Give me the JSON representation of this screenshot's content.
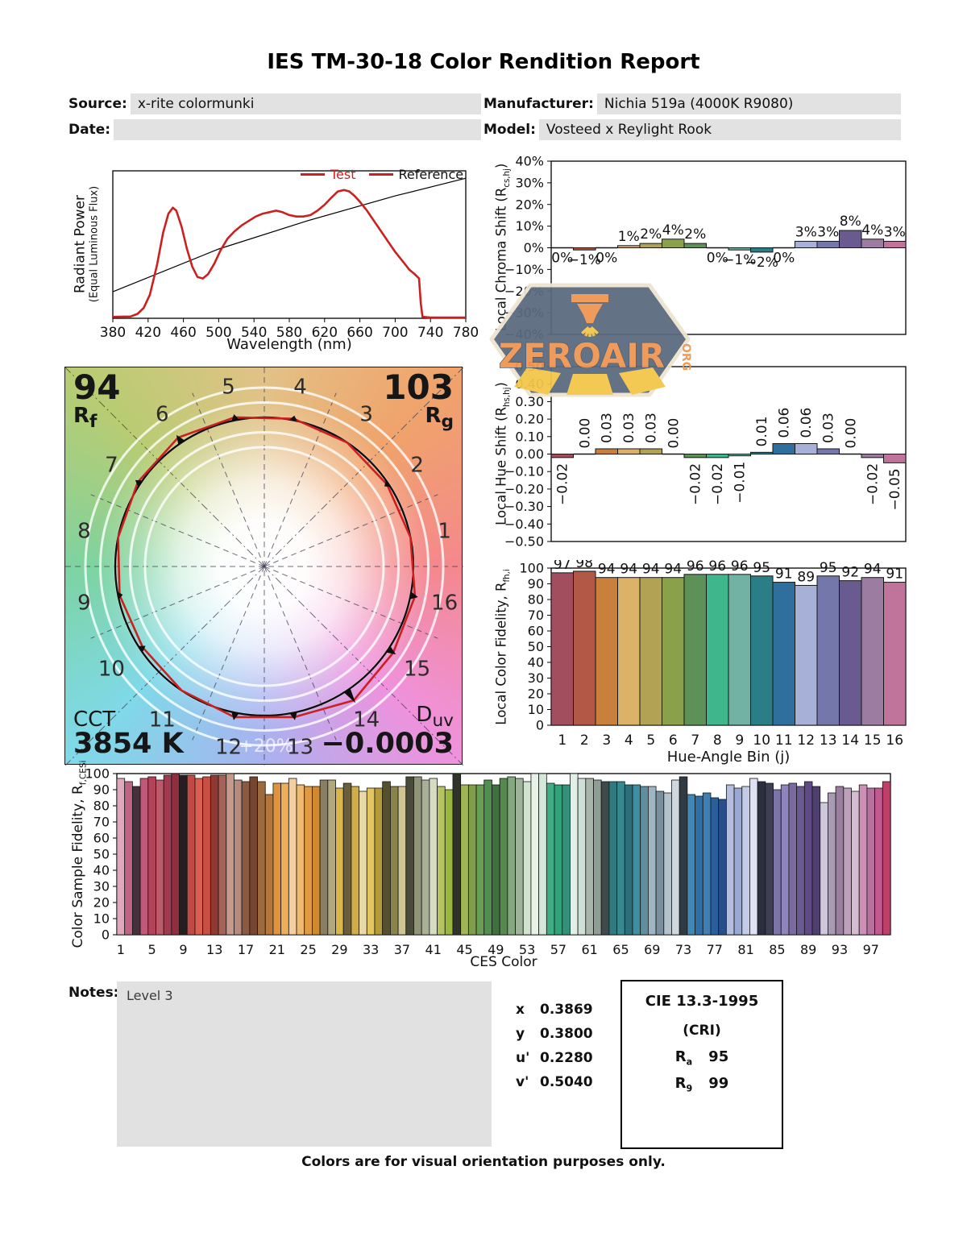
{
  "header": {
    "title": "IES TM-30-18 Color Rendition Report",
    "source_label": "Source:",
    "source_value": "x-rite colormunki",
    "manufacturer_label": "Manufacturer:",
    "manufacturer_value": "Nichia 519a (4000K R9080)",
    "date_label": "Date:",
    "date_value": "",
    "model_label": "Model:",
    "model_value": "Vosteed x Reylight Rook"
  },
  "watermark": {
    "text": "ZEROAIR",
    "suffix": "ORG",
    "badge_color": "#5a6a7e",
    "accent_color": "#ef9551",
    "beam_color": "#f3c64a",
    "border_color": "#ece4d0"
  },
  "bin_colors": [
    "#a34e5e",
    "#b25847",
    "#c9803c",
    "#dcb268",
    "#b2a354",
    "#8ba04b",
    "#5c9257",
    "#3fb68b",
    "#71b2a4",
    "#2c7e86",
    "#2f6f9e",
    "#a7b1d8",
    "#7477a9",
    "#695a90",
    "#9c7da1",
    "#c0749c"
  ],
  "chart_data": [
    {
      "id": "spd",
      "type": "line",
      "xlabel": "Wavelength (nm)",
      "ylabel_line1": "Radiant Power",
      "ylabel_line2": "(Equal Luminous Flux)",
      "xlim": [
        380,
        780
      ],
      "xticks": [
        380,
        420,
        460,
        500,
        540,
        580,
        620,
        660,
        700,
        740,
        780
      ],
      "legend": [
        {
          "label": "Test",
          "swatch_color": "#cc2020",
          "text_color": "#cc2020"
        },
        {
          "label": "Reference",
          "swatch_color": "#cc2020",
          "text_color": "#111111"
        }
      ],
      "series": [
        {
          "name": "Test",
          "color": "#cc2020",
          "points": [
            [
              380,
              0.01
            ],
            [
              400,
              0.012
            ],
            [
              408,
              0.03
            ],
            [
              415,
              0.07
            ],
            [
              422,
              0.16
            ],
            [
              430,
              0.36
            ],
            [
              437,
              0.58
            ],
            [
              443,
              0.71
            ],
            [
              448,
              0.75
            ],
            [
              452,
              0.73
            ],
            [
              458,
              0.62
            ],
            [
              464,
              0.47
            ],
            [
              470,
              0.35
            ],
            [
              476,
              0.28
            ],
            [
              482,
              0.27
            ],
            [
              488,
              0.3
            ],
            [
              495,
              0.37
            ],
            [
              502,
              0.46
            ],
            [
              510,
              0.54
            ],
            [
              518,
              0.59
            ],
            [
              526,
              0.63
            ],
            [
              534,
              0.66
            ],
            [
              542,
              0.69
            ],
            [
              550,
              0.71
            ],
            [
              558,
              0.72
            ],
            [
              565,
              0.73
            ],
            [
              572,
              0.72
            ],
            [
              580,
              0.7
            ],
            [
              588,
              0.69
            ],
            [
              596,
              0.69
            ],
            [
              604,
              0.7
            ],
            [
              612,
              0.73
            ],
            [
              620,
              0.77
            ],
            [
              628,
              0.82
            ],
            [
              635,
              0.86
            ],
            [
              642,
              0.87
            ],
            [
              648,
              0.86
            ],
            [
              654,
              0.83
            ],
            [
              660,
              0.79
            ],
            [
              668,
              0.73
            ],
            [
              676,
              0.66
            ],
            [
              684,
              0.59
            ],
            [
              692,
              0.52
            ],
            [
              700,
              0.45
            ],
            [
              708,
              0.39
            ],
            [
              716,
              0.33
            ],
            [
              722,
              0.3
            ],
            [
              727,
              0.27
            ],
            [
              729,
              0.1
            ],
            [
              731,
              0.01
            ],
            [
              740,
              0.005
            ],
            [
              780,
              0.005
            ]
          ]
        },
        {
          "name": "Reference",
          "color": "#000000",
          "points": [
            [
              380,
              0.18
            ],
            [
              500,
              0.47
            ],
            [
              600,
              0.66
            ],
            [
              700,
              0.83
            ],
            [
              780,
              0.95
            ]
          ]
        }
      ]
    },
    {
      "id": "cvg",
      "type": "polar",
      "rf_value": "94",
      "rf_sym": "R",
      "rf_sub": "f",
      "rg_value": "103",
      "rg_sym": "R",
      "rg_sub": "g",
      "cct_label": "CCT",
      "cct_value": "3854 K",
      "duv_sym": "D",
      "duv_sub": "uv",
      "duv_value": "−0.0003",
      "ring_label": "+20%",
      "bin_labels": [
        "1",
        "2",
        "3",
        "4",
        "5",
        "6",
        "7",
        "8",
        "9",
        "10",
        "11",
        "12",
        "13",
        "14",
        "15",
        "16"
      ],
      "chroma_shift_pct": [
        0,
        -1,
        0,
        1,
        2,
        4,
        2,
        0,
        -1,
        -2,
        0,
        3,
        3,
        8,
        4,
        3
      ],
      "test_color": "#cc2020",
      "reference_color": "#0d0d0d"
    },
    {
      "id": "chroma",
      "type": "bar",
      "ylabel_pre": "Local Chroma Shift (R",
      "ylabel_sub": "cs,hj",
      "ylabel_post": ")",
      "ylim": [
        -40,
        40
      ],
      "yticks": [
        "40%",
        "30%",
        "20%",
        "10%",
        "0%",
        "−10%",
        "−20%",
        "−30%",
        "−40%"
      ],
      "values": [
        0,
        -1,
        0,
        1,
        2,
        4,
        2,
        0,
        -1,
        -2,
        0,
        3,
        3,
        8,
        4,
        3
      ],
      "labels": [
        "0%",
        "−1%",
        "0%",
        "1%",
        "2%",
        "4%",
        "2%",
        "0%",
        "−1%",
        "−2%",
        "0%",
        "3%",
        "3%",
        "8%",
        "4%",
        "3%"
      ],
      "colors": [
        "#a34e5e",
        "#b25847",
        "#c9803c",
        "#dcb268",
        "#b2a354",
        "#8ba04b",
        "#5c9257",
        "#3fb68b",
        "#71b2a4",
        "#2c7e86",
        "#2f6f9e",
        "#a7b1d8",
        "#7477a9",
        "#695a90",
        "#9c7da1",
        "#c0749c"
      ]
    },
    {
      "id": "hue",
      "type": "bar",
      "ylabel_pre": "Local Hue Shift (R",
      "ylabel_sub": "hs,hj",
      "ylabel_post": ")",
      "ylim": [
        -0.5,
        0.5
      ],
      "yticks": [
        "0.50",
        "0.40",
        "0.30",
        "0.20",
        "0.10",
        "0.00",
        "−0.10",
        "−0.20",
        "−0.30",
        "−0.40",
        "−0.50"
      ],
      "values": [
        -0.02,
        0,
        0.03,
        0.03,
        0.03,
        0,
        -0.02,
        -0.02,
        -0.01,
        0.01,
        0.06,
        0.06,
        0.03,
        0,
        -0.02,
        -0.05
      ],
      "labels": [
        "−0.02",
        "0.00",
        "0.03",
        "0.03",
        "0.03",
        "0.00",
        "−0.02",
        "−0.02",
        "−0.01",
        "0.01",
        "0.06",
        "0.06",
        "0.03",
        "0.00",
        "−0.02",
        "−0.05"
      ],
      "colors": [
        "#a34e5e",
        "#b25847",
        "#c9803c",
        "#dcb268",
        "#b2a354",
        "#8ba04b",
        "#5c9257",
        "#3fb68b",
        "#71b2a4",
        "#2c7e86",
        "#2f6f9e",
        "#a7b1d8",
        "#7477a9",
        "#695a90",
        "#9c7da1",
        "#c0749c"
      ]
    },
    {
      "id": "fid16",
      "type": "bar",
      "ylabel_pre": "Local Color Fidelity, R",
      "ylabel_sub": "fh,i",
      "ylabel_post": "",
      "xlabel": "Hue-Angle Bin (j)",
      "ylim": [
        0,
        100
      ],
      "yticks": [
        "100",
        "90",
        "80",
        "70",
        "60",
        "50",
        "40",
        "30",
        "20",
        "10",
        "0"
      ],
      "xticks": [
        "1",
        "2",
        "3",
        "4",
        "5",
        "6",
        "7",
        "8",
        "9",
        "10",
        "11",
        "12",
        "13",
        "14",
        "15",
        "16"
      ],
      "values": [
        97,
        98,
        94,
        94,
        94,
        94,
        96,
        96,
        96,
        95,
        91,
        89,
        95,
        92,
        94,
        91
      ],
      "labels": [
        "97",
        "98",
        "94",
        "94",
        "94",
        "94",
        "96",
        "96",
        "96",
        "95",
        "91",
        "89",
        "95",
        "92",
        "94",
        "91"
      ],
      "colors": [
        "#a34e5e",
        "#b25847",
        "#c9803c",
        "#dcb268",
        "#b2a354",
        "#8ba04b",
        "#5c9257",
        "#3fb68b",
        "#71b2a4",
        "#2c7e86",
        "#2f6f9e",
        "#a7b1d8",
        "#7477a9",
        "#695a90",
        "#9c7da1",
        "#c0749c"
      ]
    },
    {
      "id": "ces",
      "type": "bar",
      "ylabel_pre": "Color Sample Fidelity, R",
      "ylabel_sub": "f,CESi",
      "ylabel_post": "",
      "xlabel": "CES Color",
      "ylim": [
        0,
        100
      ],
      "yticks": [
        "100",
        "90",
        "80",
        "70",
        "60",
        "50",
        "40",
        "30",
        "20",
        "10",
        "0"
      ],
      "xticks": [
        1,
        5,
        9,
        13,
        17,
        21,
        25,
        29,
        33,
        37,
        41,
        45,
        49,
        53,
        57,
        61,
        65,
        69,
        73,
        77,
        81,
        85,
        89,
        93,
        97
      ],
      "values": [
        97,
        95,
        92,
        97,
        98,
        96,
        99,
        100,
        99,
        99,
        97,
        98,
        99,
        99,
        100,
        96,
        95,
        98,
        95,
        87,
        94,
        94,
        97,
        93,
        92,
        92,
        96,
        96,
        91,
        94,
        92,
        89,
        91,
        91,
        95,
        92,
        92,
        98,
        98,
        96,
        97,
        92,
        90,
        100,
        93,
        93,
        93,
        96,
        93,
        97,
        98,
        97,
        95,
        100,
        100,
        94,
        93,
        93,
        100,
        97,
        97,
        96,
        95,
        95,
        95,
        93,
        93,
        92,
        92,
        89,
        88,
        96,
        98,
        87,
        86,
        88,
        85,
        84,
        93,
        91,
        92,
        97,
        95,
        94,
        90,
        93,
        94,
        92,
        95,
        92,
        82,
        88,
        92,
        91,
        89,
        93,
        91,
        91,
        95
      ],
      "colors": [
        "#dfa8bd",
        "#c06483",
        "#45303b",
        "#c25878",
        "#b2445a",
        "#bd5a69",
        "#a03a4e",
        "#8f2e3f",
        "#241d21",
        "#c24a44",
        "#d95f50",
        "#c94f43",
        "#8e3a32",
        "#a66258",
        "#c59a8d",
        "#b78a80",
        "#8a5a44",
        "#75452f",
        "#9c6a3f",
        "#b5763a",
        "#e0923f",
        "#edae59",
        "#f3cfa2",
        "#efb96e",
        "#e09a41",
        "#cf8a30",
        "#8a7f62",
        "#b3a87c",
        "#d9b54a",
        "#6b5e3c",
        "#cfae4a",
        "#e8d9a8",
        "#e3c75e",
        "#b59b3a",
        "#55512f",
        "#8a844c",
        "#cfc492",
        "#4a4a3a",
        "#8f9478",
        "#a8b096",
        "#d5dcc2",
        "#b5c45e",
        "#9ab83f",
        "#2f332a",
        "#a0b556",
        "#7f9e4a",
        "#6a9e55",
        "#4f8f4f",
        "#3f7040",
        "#57884f",
        "#85a881",
        "#9fb39b",
        "#cfe3cf",
        "#e8f2e6",
        "#d5e8d8",
        "#3fae84",
        "#2fa37a",
        "#35907a",
        "#e2efe7",
        "#cfe0d6",
        "#a8b5a8",
        "#8f9e94",
        "#3f4a4a",
        "#2f7a7f",
        "#35898f",
        "#2b6f7a",
        "#3f8fa0",
        "#5f8f9e",
        "#9fb5c2",
        "#7a8f9e",
        "#b5c2cc",
        "#cfd8de",
        "#2f3a42",
        "#3f87b5",
        "#2f6fa8",
        "#3f7fb2",
        "#2a5f9e",
        "#274f8a",
        "#b5bede",
        "#9aa8d5",
        "#c2cbe8",
        "#dfe2f2",
        "#2a2f3f",
        "#3f3f52",
        "#7a74a8",
        "#8f84bb",
        "#7a6aa0",
        "#6a5a92",
        "#5f4a85",
        "#4f3f6f",
        "#cfc8da",
        "#a89ab2",
        "#9a7f9e",
        "#bfa0bb",
        "#d5bcd2",
        "#cc8fb5",
        "#b5729e",
        "#c25a8f",
        "#bf3f68"
      ]
    }
  ],
  "notes": {
    "label": "Notes:",
    "value": "Level 3"
  },
  "chromaticity": {
    "rows": [
      {
        "label": "x",
        "value": "0.3869"
      },
      {
        "label": "y",
        "value": "0.3800"
      },
      {
        "label": "u'",
        "value": "0.2280"
      },
      {
        "label": "v'",
        "value": "0.5040"
      }
    ]
  },
  "cri_box": {
    "title": "CIE 13.3-1995",
    "subtitle": "(CRI)",
    "rows": [
      {
        "sym": "R",
        "sub": "a",
        "value": "95"
      },
      {
        "sym": "R",
        "sub": "9",
        "value": "99"
      }
    ]
  },
  "footer": {
    "note": "Colors are for visual orientation purposes only."
  }
}
